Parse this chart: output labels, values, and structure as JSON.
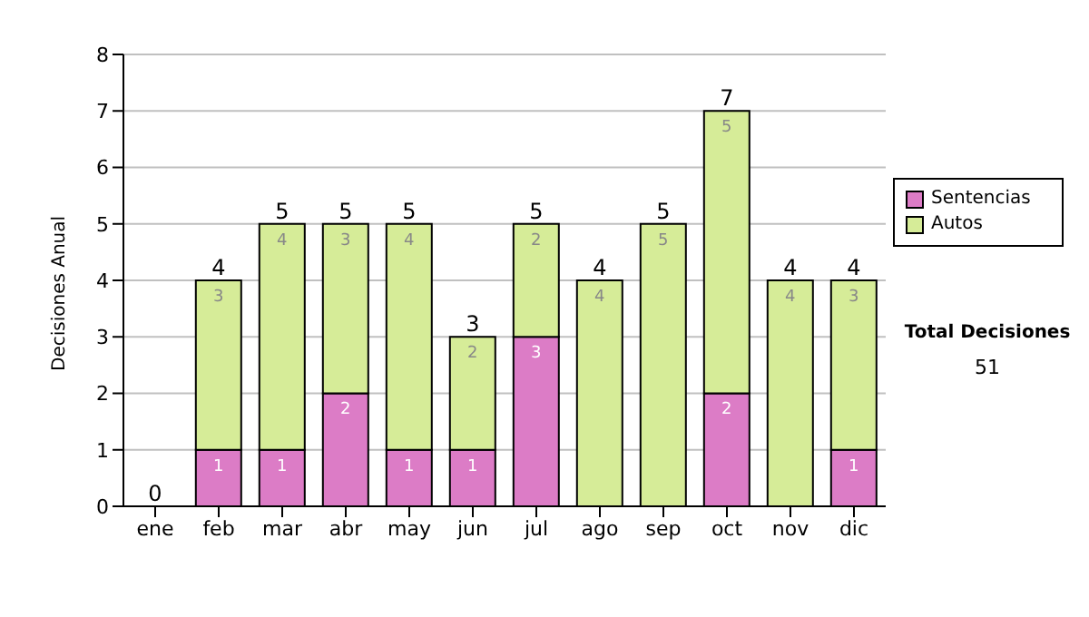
{
  "chart_data": {
    "type": "bar",
    "stacked": true,
    "ylabel": "Decisiones Anual",
    "categories": [
      "ene",
      "feb",
      "mar",
      "abr",
      "may",
      "jun",
      "jul",
      "ago",
      "sep",
      "oct",
      "nov",
      "dic"
    ],
    "series": [
      {
        "name": "Sentencias",
        "color": "#dc7cc6",
        "values": [
          0,
          1,
          1,
          2,
          1,
          1,
          3,
          0,
          0,
          2,
          0,
          1
        ],
        "value_labels": [
          null,
          "1",
          "1",
          "2",
          "1",
          "1",
          "3",
          null,
          null,
          "2",
          null,
          "1"
        ]
      },
      {
        "name": "Autos",
        "color": "#d6ec98",
        "values": [
          0,
          3,
          4,
          3,
          4,
          2,
          2,
          4,
          5,
          5,
          4,
          3
        ],
        "value_labels": [
          null,
          "3",
          "4",
          "3",
          "4",
          "2",
          "2",
          "4",
          "5",
          "5",
          "4",
          "3"
        ]
      }
    ],
    "totals": [
      "0",
      "4",
      "5",
      "5",
      "5",
      "3",
      "5",
      "4",
      "5",
      "7",
      "4",
      "4"
    ],
    "ylim": [
      0,
      8
    ],
    "yticks": [
      0,
      1,
      2,
      3,
      4,
      5,
      6,
      7,
      8
    ],
    "grid": "y",
    "legend": "right",
    "annotations": [
      "Total Decisiones",
      "51"
    ]
  }
}
